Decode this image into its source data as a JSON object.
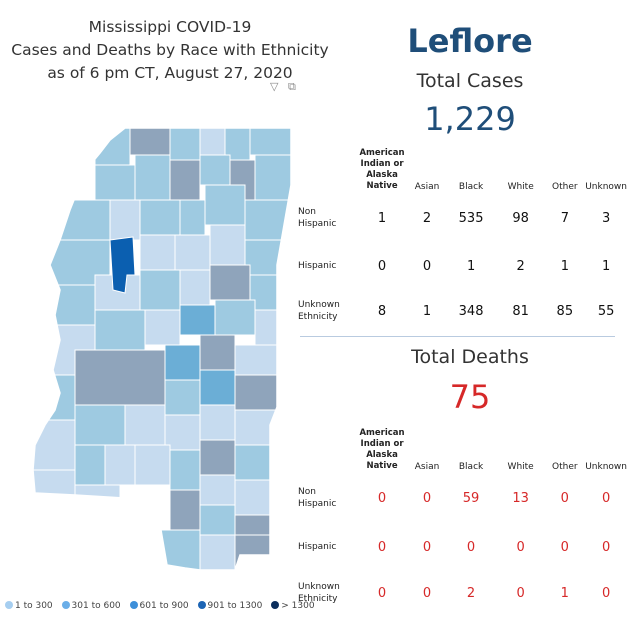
{
  "header": {
    "title_lines": [
      "Mississippi COVID-19",
      "Cases and Deaths by Race with Ethnicity",
      "as of 6 pm CT, August 27, 2020"
    ]
  },
  "toolbar": {
    "filter_icon": "filter-icon",
    "expand_icon": "focus-mode-icon"
  },
  "map": {
    "highlighted_county": "Leflore",
    "colors": {
      "c1": "#c6dbef",
      "c2": "#9ecae1",
      "c3": "#6baed6",
      "c4": "#2171b5",
      "c5": "#08306b",
      "gray": "#8fa4bb",
      "highlight": "#0b5fb0"
    }
  },
  "legend": {
    "items": [
      {
        "label": "1 to 300",
        "color": "#a6cef0"
      },
      {
        "label": "301 to 600",
        "color": "#6aaee8"
      },
      {
        "label": "601 to 900",
        "color": "#3d8fd9"
      },
      {
        "label": "901 to 1300",
        "color": "#1c64b4"
      },
      {
        "label": "> 1300",
        "color": "#0b2e5c"
      }
    ]
  },
  "county": {
    "name": "Leflore"
  },
  "columns": {
    "ai": [
      "American",
      "Indian or",
      "Alaska Native"
    ],
    "asian": "Asian",
    "black": "Black",
    "white": "White",
    "other": "Other",
    "unknown": "Unknown"
  },
  "row_labels": {
    "non_hispanic": [
      "Non",
      "Hispanic"
    ],
    "hispanic": [
      "Hispanic"
    ],
    "unknown": [
      "Unknown",
      "Ethnicity"
    ]
  },
  "cases": {
    "title": "Total Cases",
    "total": "1,229",
    "rows": {
      "non_hispanic": [
        "1",
        "2",
        "535",
        "98",
        "7",
        "3"
      ],
      "hispanic": [
        "0",
        "0",
        "1",
        "2",
        "1",
        "1"
      ],
      "unknown": [
        "8",
        "1",
        "348",
        "81",
        "85",
        "55"
      ]
    }
  },
  "deaths": {
    "title": "Total Deaths",
    "total": "75",
    "rows": {
      "non_hispanic": [
        "0",
        "0",
        "59",
        "13",
        "0",
        "0"
      ],
      "hispanic": [
        "0",
        "0",
        "0",
        "0",
        "0",
        "0"
      ],
      "unknown": [
        "0",
        "0",
        "2",
        "0",
        "1",
        "0"
      ]
    }
  }
}
